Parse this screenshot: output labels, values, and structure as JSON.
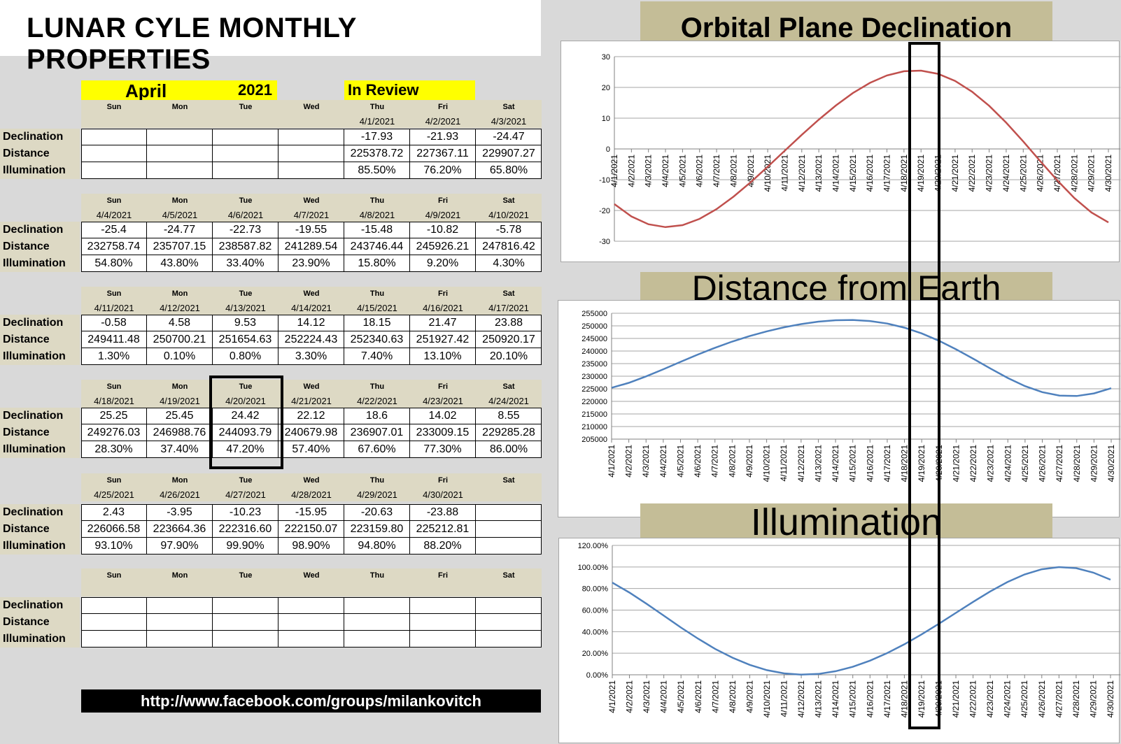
{
  "page_title": "LUNAR CYLE MONTHLY PROPERTIES",
  "month": "April",
  "year": "2021",
  "review_label": "In Review",
  "row_labels": [
    "Declination",
    "Distance",
    "Illumination"
  ],
  "day_names": [
    "Sun",
    "Mon",
    "Tue",
    "Wed",
    "Thu",
    "Fri",
    "Sat"
  ],
  "weeks": [
    {
      "dates": [
        "",
        "",
        "",
        "",
        "4/1/2021",
        "4/2/2021",
        "4/3/2021"
      ],
      "declination": [
        "",
        "",
        "",
        "",
        "-17.93",
        "-21.93",
        "-24.47"
      ],
      "distance": [
        "",
        "",
        "",
        "",
        "225378.72",
        "227367.11",
        "229907.27"
      ],
      "illumination": [
        "",
        "",
        "",
        "",
        "85.50%",
        "76.20%",
        "65.80%"
      ]
    },
    {
      "dates": [
        "4/4/2021",
        "4/5/2021",
        "4/6/2021",
        "4/7/2021",
        "4/8/2021",
        "4/9/2021",
        "4/10/2021"
      ],
      "declination": [
        "-25.4",
        "-24.77",
        "-22.73",
        "-19.55",
        "-15.48",
        "-10.82",
        "-5.78"
      ],
      "distance": [
        "232758.74",
        "235707.15",
        "238587.82",
        "241289.54",
        "243746.44",
        "245926.21",
        "247816.42"
      ],
      "illumination": [
        "54.80%",
        "43.80%",
        "33.40%",
        "23.90%",
        "15.80%",
        "9.20%",
        "4.30%"
      ]
    },
    {
      "dates": [
        "4/11/2021",
        "4/12/2021",
        "4/13/2021",
        "4/14/2021",
        "4/15/2021",
        "4/16/2021",
        "4/17/2021"
      ],
      "declination": [
        "-0.58",
        "4.58",
        "9.53",
        "14.12",
        "18.15",
        "21.47",
        "23.88"
      ],
      "distance": [
        "249411.48",
        "250700.21",
        "251654.63",
        "252224.43",
        "252340.63",
        "251927.42",
        "250920.17"
      ],
      "illumination": [
        "1.30%",
        "0.10%",
        "0.80%",
        "3.30%",
        "7.40%",
        "13.10%",
        "20.10%"
      ]
    },
    {
      "dates": [
        "4/18/2021",
        "4/19/2021",
        "4/20/2021",
        "4/21/2021",
        "4/22/2021",
        "4/23/2021",
        "4/24/2021"
      ],
      "declination": [
        "25.25",
        "25.45",
        "24.42",
        "22.12",
        "18.6",
        "14.02",
        "8.55"
      ],
      "distance": [
        "249276.03",
        "246988.76",
        "244093.79",
        "240679.98",
        "236907.01",
        "233009.15",
        "229285.28"
      ],
      "illumination": [
        "28.30%",
        "37.40%",
        "47.20%",
        "57.40%",
        "67.60%",
        "77.30%",
        "86.00%"
      ]
    },
    {
      "dates": [
        "4/25/2021",
        "4/26/2021",
        "4/27/2021",
        "4/28/2021",
        "4/29/2021",
        "4/30/2021",
        ""
      ],
      "declination": [
        "2.43",
        "-3.95",
        "-10.23",
        "-15.95",
        "-20.63",
        "-23.88",
        ""
      ],
      "distance": [
        "226066.58",
        "223664.36",
        "222316.60",
        "222150.07",
        "223159.80",
        "225212.81",
        ""
      ],
      "illumination": [
        "93.10%",
        "97.90%",
        "99.90%",
        "98.90%",
        "94.80%",
        "88.20%",
        ""
      ]
    },
    {
      "dates": [
        "",
        "",
        "",
        "",
        "",
        "",
        ""
      ],
      "declination": [
        "",
        "",
        "",
        "",
        "",
        "",
        ""
      ],
      "distance": [
        "",
        "",
        "",
        "",
        "",
        "",
        ""
      ],
      "illumination": [
        "",
        "",
        "",
        "",
        "",
        "",
        ""
      ]
    }
  ],
  "highlighted_date": "4/20/2021",
  "footer_url": "http://www.facebook.com/groups/milankovitch",
  "chart_data": [
    {
      "type": "line",
      "title": "Orbital Plane Declination",
      "color": "#c0504d",
      "x": [
        "4/1/2021",
        "4/2/2021",
        "4/3/2021",
        "4/4/2021",
        "4/5/2021",
        "4/6/2021",
        "4/7/2021",
        "4/8/2021",
        "4/9/2021",
        "4/10/2021",
        "4/11/2021",
        "4/12/2021",
        "4/13/2021",
        "4/14/2021",
        "4/15/2021",
        "4/16/2021",
        "4/17/2021",
        "4/18/2021",
        "4/19/2021",
        "4/20/2021",
        "4/21/2021",
        "4/22/2021",
        "4/23/2021",
        "4/24/2021",
        "4/25/2021",
        "4/26/2021",
        "4/27/2021",
        "4/28/2021",
        "4/29/2021",
        "4/30/2021"
      ],
      "values": [
        -17.93,
        -21.93,
        -24.47,
        -25.4,
        -24.77,
        -22.73,
        -19.55,
        -15.48,
        -10.82,
        -5.78,
        -0.58,
        4.58,
        9.53,
        14.12,
        18.15,
        21.47,
        23.88,
        25.25,
        25.45,
        24.42,
        22.12,
        18.6,
        14.02,
        8.55,
        2.43,
        -3.95,
        -10.23,
        -15.95,
        -20.63,
        -23.88
      ],
      "ylim": [
        -30,
        30
      ],
      "yticks": [
        "30",
        "20",
        "10",
        "0",
        "-10",
        "-20",
        "-30"
      ],
      "grid": true,
      "legend": "none"
    },
    {
      "type": "line",
      "title": "Distance from Earth",
      "color": "#4f81bd",
      "x": [
        "4/1/2021",
        "4/2/2021",
        "4/3/2021",
        "4/4/2021",
        "4/5/2021",
        "4/6/2021",
        "4/7/2021",
        "4/8/2021",
        "4/9/2021",
        "4/10/2021",
        "4/11/2021",
        "4/12/2021",
        "4/13/2021",
        "4/14/2021",
        "4/15/2021",
        "4/16/2021",
        "4/17/2021",
        "4/18/2021",
        "4/19/2021",
        "4/20/2021",
        "4/21/2021",
        "4/22/2021",
        "4/23/2021",
        "4/24/2021",
        "4/25/2021",
        "4/26/2021",
        "4/27/2021",
        "4/28/2021",
        "4/29/2021",
        "4/30/2021"
      ],
      "values": [
        225378.72,
        227367.11,
        229907.27,
        232758.74,
        235707.15,
        238587.82,
        241289.54,
        243746.44,
        245926.21,
        247816.42,
        249411.48,
        250700.21,
        251654.63,
        252224.43,
        252340.63,
        251927.42,
        250920.17,
        249276.03,
        246988.76,
        244093.79,
        240679.98,
        236907.01,
        233009.15,
        229285.28,
        226066.58,
        223664.36,
        222316.6,
        222150.07,
        223159.8,
        225212.81
      ],
      "ylim": [
        205000,
        255000
      ],
      "yticks": [
        "255000",
        "250000",
        "245000",
        "240000",
        "235000",
        "230000",
        "225000",
        "220000",
        "215000",
        "210000",
        "205000"
      ],
      "grid": true,
      "legend": "none"
    },
    {
      "type": "line",
      "title": "Illumination",
      "color": "#4f81bd",
      "x": [
        "4/1/2021",
        "4/2/2021",
        "4/3/2021",
        "4/4/2021",
        "4/5/2021",
        "4/6/2021",
        "4/7/2021",
        "4/8/2021",
        "4/9/2021",
        "4/10/2021",
        "4/11/2021",
        "4/12/2021",
        "4/13/2021",
        "4/14/2021",
        "4/15/2021",
        "4/16/2021",
        "4/17/2021",
        "4/18/2021",
        "4/19/2021",
        "4/20/2021",
        "4/21/2021",
        "4/22/2021",
        "4/23/2021",
        "4/24/2021",
        "4/25/2021",
        "4/26/2021",
        "4/27/2021",
        "4/28/2021",
        "4/29/2021",
        "4/30/2021"
      ],
      "values": [
        85.5,
        76.2,
        65.8,
        54.8,
        43.8,
        33.4,
        23.9,
        15.8,
        9.2,
        4.3,
        1.3,
        0.1,
        0.8,
        3.3,
        7.4,
        13.1,
        20.1,
        28.3,
        37.4,
        47.2,
        57.4,
        67.6,
        77.3,
        86.0,
        93.1,
        97.9,
        99.9,
        98.9,
        94.8,
        88.2
      ],
      "ylim": [
        0,
        120
      ],
      "yticks": [
        "120.00%",
        "100.00%",
        "80.00%",
        "60.00%",
        "40.00%",
        "20.00%",
        "0.00%"
      ],
      "grid": true,
      "legend": "none"
    }
  ]
}
